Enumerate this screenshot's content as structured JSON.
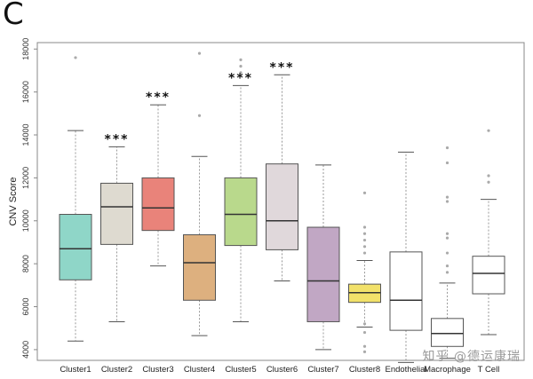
{
  "panel_label": "C",
  "watermark": "知乎 @德运康瑞",
  "chart_data": {
    "type": "box",
    "title": "",
    "xlabel": "",
    "ylabel": "CNV Score",
    "ylim": [
      3500,
      18300
    ],
    "y_ticks": [
      4000,
      6000,
      8000,
      10000,
      12000,
      14000,
      16000,
      18000
    ],
    "significance_marker": "***",
    "series": [
      {
        "name": "Cluster1",
        "color": "#8fd6c8",
        "whisker_low": 4400,
        "q1": 7250,
        "median": 8700,
        "q3": 10300,
        "whisker_high": 14200,
        "outliers": [
          17600
        ],
        "significance": ""
      },
      {
        "name": "Cluster2",
        "color": "#dedad0",
        "whisker_low": 5300,
        "q1": 8900,
        "median": 10650,
        "q3": 11750,
        "whisker_high": 13450,
        "outliers": [],
        "significance": "***"
      },
      {
        "name": "Cluster3",
        "color": "#e9837a",
        "whisker_low": 7900,
        "q1": 9550,
        "median": 10600,
        "q3": 12000,
        "whisker_high": 15400,
        "outliers": [],
        "significance": "***"
      },
      {
        "name": "Cluster4",
        "color": "#ddb07f",
        "whisker_low": 4650,
        "q1": 6300,
        "median": 8050,
        "q3": 9350,
        "whisker_high": 13000,
        "outliers": [
          14900,
          17800
        ],
        "significance": ""
      },
      {
        "name": "Cluster5",
        "color": "#b9d98c",
        "whisker_low": 5300,
        "q1": 8850,
        "median": 10300,
        "q3": 12000,
        "whisker_high": 16300,
        "outliers": [
          16900,
          17200,
          17500
        ],
        "significance": "***"
      },
      {
        "name": "Cluster6",
        "color": "#e0d8db",
        "whisker_low": 7200,
        "q1": 8650,
        "median": 10000,
        "q3": 12650,
        "whisker_high": 16800,
        "outliers": [],
        "significance": "***"
      },
      {
        "name": "Cluster7",
        "color": "#c1a7c4",
        "whisker_low": 4000,
        "q1": 5300,
        "median": 7200,
        "q3": 9700,
        "whisker_high": 12600,
        "outliers": [],
        "significance": ""
      },
      {
        "name": "Cluster8",
        "color": "#f2e16a",
        "whisker_low": 5050,
        "q1": 6200,
        "median": 6650,
        "q3": 7050,
        "whisker_high": 8150,
        "outliers": [
          3900,
          4150,
          4800,
          5200,
          8500,
          8800,
          9100,
          9400,
          9700,
          11300
        ],
        "significance": ""
      },
      {
        "name": "Endothelial",
        "color": "#ffffff",
        "whisker_low": 3400,
        "q1": 4900,
        "median": 6300,
        "q3": 8550,
        "whisker_high": 13200,
        "outliers": [],
        "significance": ""
      },
      {
        "name": "Macrophage",
        "color": "#ffffff",
        "whisker_low": 3600,
        "q1": 4150,
        "median": 4750,
        "q3": 5450,
        "whisker_high": 7100,
        "outliers": [
          7600,
          7900,
          8500,
          9200,
          9400,
          10900,
          11100,
          12700,
          13400
        ],
        "significance": ""
      },
      {
        "name": "T Cell",
        "color": "#ffffff",
        "whisker_low": 4700,
        "q1": 6600,
        "median": 7550,
        "q3": 8350,
        "whisker_high": 11000,
        "outliers": [
          11800,
          12100,
          14200
        ],
        "significance": ""
      }
    ]
  }
}
